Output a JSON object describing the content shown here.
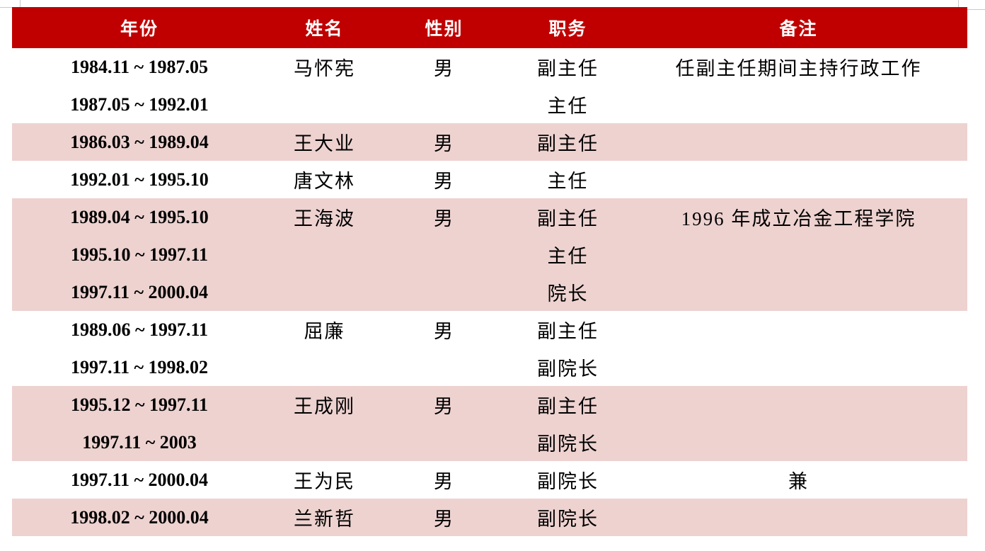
{
  "colors": {
    "header_bg": "#C00000",
    "header_text": "#FFFFFF",
    "row_shaded_bg": "#EDD2D0",
    "row_plain_bg": "#FFFFFF",
    "body_text": "#000000",
    "gridmark": "#C9C9C9"
  },
  "table": {
    "columns": [
      {
        "key": "years",
        "label": "年份"
      },
      {
        "key": "name",
        "label": "姓名"
      },
      {
        "key": "gender",
        "label": "性别"
      },
      {
        "key": "position",
        "label": "职务"
      },
      {
        "key": "note",
        "label": "备注"
      }
    ],
    "rows": [
      {
        "years": [
          "1984.11 ~ 1987.05",
          "1987.05 ~ 1992.01"
        ],
        "name": "马怀宪",
        "gender": "男",
        "positions": [
          "副主任",
          "主任"
        ],
        "note": "任副主任期间主持行政工作",
        "shaded": false
      },
      {
        "years": [
          "1986.03 ~ 1989.04"
        ],
        "name": "王大业",
        "gender": "男",
        "positions": [
          "副主任"
        ],
        "note": "",
        "shaded": true
      },
      {
        "years": [
          "1992.01 ~ 1995.10"
        ],
        "name": "唐文林",
        "gender": "男",
        "positions": [
          "主任"
        ],
        "note": "",
        "shaded": false
      },
      {
        "years": [
          "1989.04 ~ 1995.10",
          "1995.10 ~ 1997.11",
          "1997.11 ~ 2000.04"
        ],
        "name": "王海波",
        "gender": "男",
        "positions": [
          "副主任",
          "主任",
          "院长"
        ],
        "note": "1996 年成立冶金工程学院",
        "shaded": true
      },
      {
        "years": [
          "1989.06 ~ 1997.11",
          "1997.11 ~ 1998.02"
        ],
        "name": "屈廉",
        "gender": "男",
        "positions": [
          "副主任",
          "副院长"
        ],
        "note": "",
        "shaded": false
      },
      {
        "years": [
          "1995.12 ~ 1997.11",
          "1997.11 ~ 2003"
        ],
        "name": "王成刚",
        "gender": "男",
        "positions": [
          "副主任",
          "副院长"
        ],
        "note": "",
        "shaded": true
      },
      {
        "years": [
          "1997.11 ~ 2000.04"
        ],
        "name": "王为民",
        "gender": "男",
        "positions": [
          "副院长"
        ],
        "note": "兼",
        "shaded": false
      },
      {
        "years": [
          "1998.02 ~ 2000.04"
        ],
        "name": "兰新哲",
        "gender": "男",
        "positions": [
          "副院长"
        ],
        "note": "",
        "shaded": true
      }
    ]
  }
}
